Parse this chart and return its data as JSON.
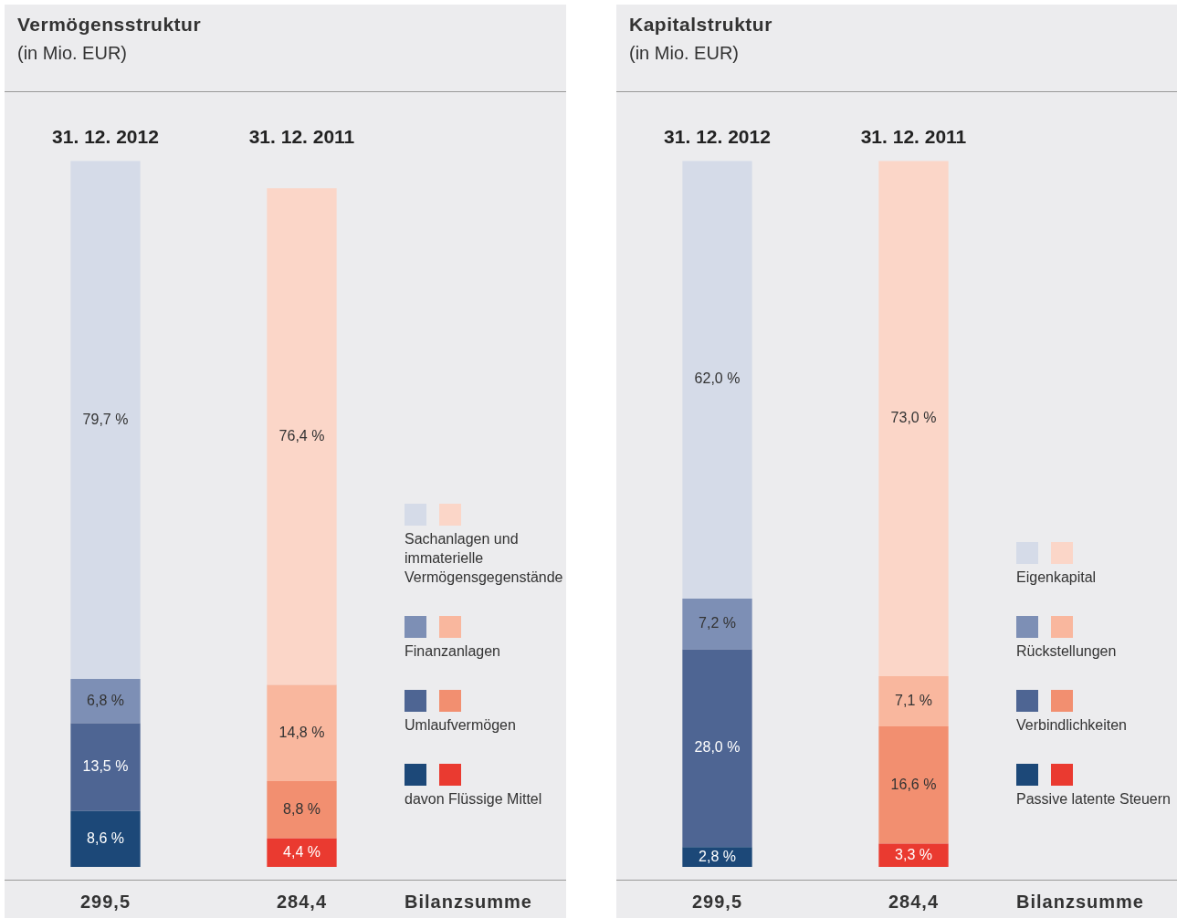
{
  "chart_data": [
    {
      "type": "bar",
      "title": "Vermögensstruktur",
      "subtitle": "(in Mio. EUR)",
      "categories": [
        "31. 12. 2012",
        "31. 12. 2011"
      ],
      "stacked": true,
      "legend": "right",
      "tick_labels": "x",
      "series": [
        {
          "name": "davon Flüssige Mittel",
          "colors": [
            "#1c4878",
            "#ea3a30"
          ],
          "values": [
            8.6,
            4.4
          ],
          "value_labels": [
            "8,6 %",
            "4,4 %"
          ]
        },
        {
          "name": "Umlaufvermögen",
          "colors": [
            "#4e6593",
            "#f28f70"
          ],
          "values": [
            13.5,
            8.8
          ],
          "value_labels": [
            "13,5 %",
            "8,8 %"
          ]
        },
        {
          "name": "Finanzanlagen",
          "colors": [
            "#7d8fb5",
            "#f9b79e"
          ],
          "values": [
            6.8,
            14.8
          ],
          "value_labels": [
            "6,8 %",
            "14,8 %"
          ]
        },
        {
          "name": "Sachanlagen und immaterielle Vermögensgegenstände",
          "colors": [
            "#d5dbe8",
            "#fbd6c8"
          ],
          "values": [
            79.7,
            76.4
          ],
          "value_labels": [
            "79,7 %",
            "76,4 %"
          ]
        }
      ],
      "annotations": [
        "299,5",
        "284,4",
        "Bilanzsumme"
      ]
    },
    {
      "type": "bar",
      "title": "Kapitalstruktur",
      "subtitle": "(in Mio. EUR)",
      "categories": [
        "31. 12. 2012",
        "31. 12. 2011"
      ],
      "stacked": true,
      "legend": "right",
      "tick_labels": "x",
      "series": [
        {
          "name": "Passive latente Steuern",
          "colors": [
            "#1c4878",
            "#ea3a30"
          ],
          "values": [
            2.8,
            3.3
          ],
          "value_labels": [
            "2,8 %",
            "3,3 %"
          ]
        },
        {
          "name": "Verbindlichkeiten",
          "colors": [
            "#4e6593",
            "#f28f70"
          ],
          "values": [
            28.0,
            16.6
          ],
          "value_labels": [
            "28,0 %",
            "16,6 %"
          ]
        },
        {
          "name": "Rückstellungen",
          "colors": [
            "#7d8fb5",
            "#f9b79e"
          ],
          "values": [
            7.2,
            7.1
          ],
          "value_labels": [
            "7,2 %",
            "7,1 %"
          ]
        },
        {
          "name": "Eigenkapital",
          "colors": [
            "#d5dbe8",
            "#fbd6c8"
          ],
          "values": [
            62.0,
            73.0
          ],
          "value_labels": [
            "62,0 %",
            "73,0 %"
          ]
        }
      ],
      "annotations": [
        "299,5",
        "284,4",
        "Bilanzsumme"
      ]
    }
  ]
}
